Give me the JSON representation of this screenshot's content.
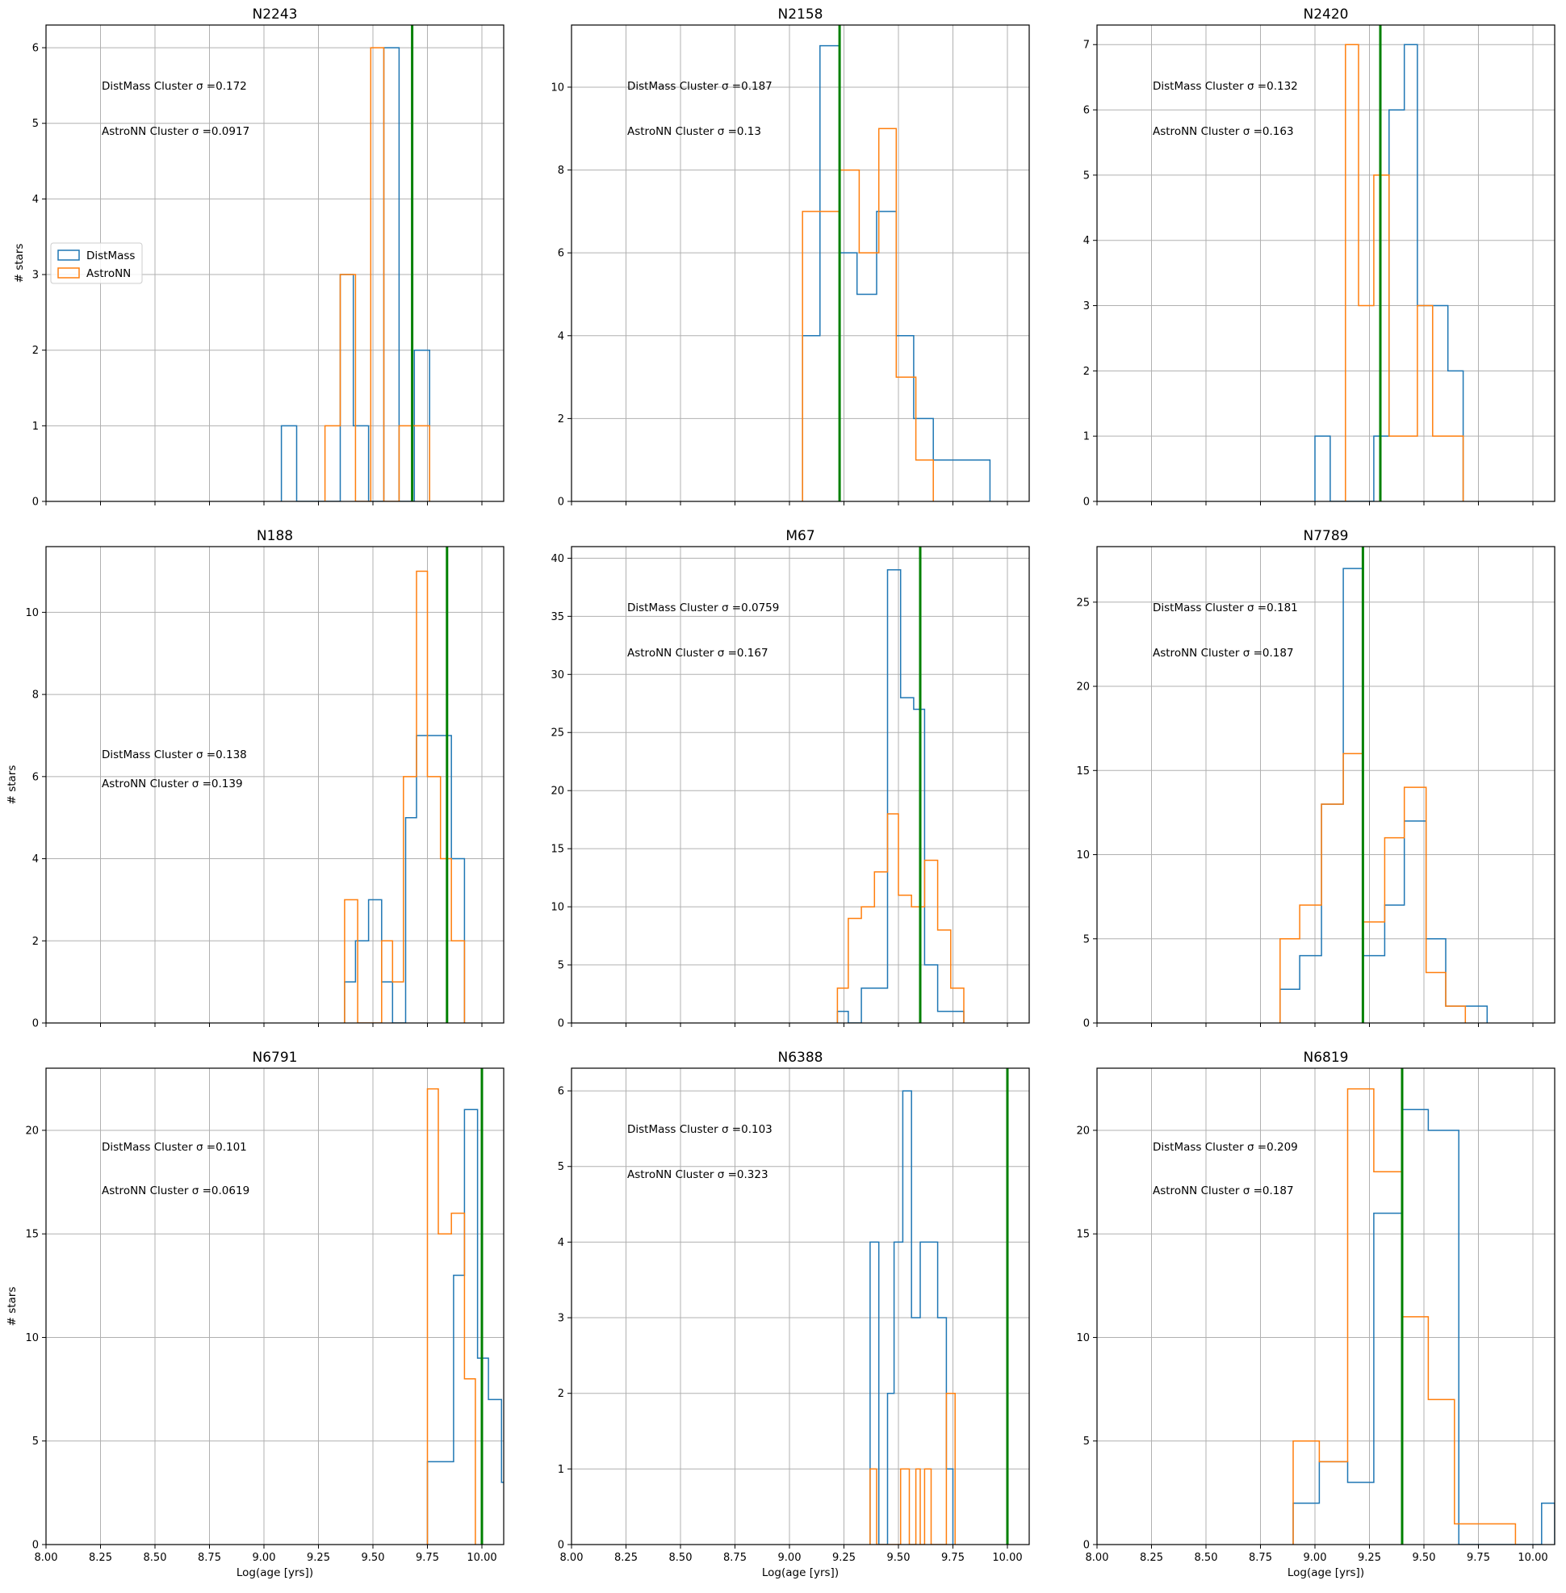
{
  "figure": {
    "shared_xlabel": "Log(age [yrs])",
    "shared_ylabel": "# stars",
    "x_ticks": [
      "8.00",
      "8.25",
      "8.50",
      "8.75",
      "9.00",
      "9.25",
      "9.50",
      "9.75",
      "10.00"
    ],
    "legend": [
      {
        "label": "DistMass",
        "color": "#1f77b4"
      },
      {
        "label": "AstroNN",
        "color": "#ff7f0e"
      }
    ],
    "colors": {
      "distmass": "#1f77b4",
      "astronn": "#ff7f0e",
      "reference_line": "#008000",
      "grid": "#b0b0b0"
    }
  },
  "chart_data": [
    {
      "type": "histogram",
      "title": "N2243",
      "xlim": [
        8.0,
        10.1
      ],
      "ylim": [
        0,
        6.3
      ],
      "yticks": [
        0,
        1,
        2,
        3,
        4,
        5,
        6
      ],
      "grid": true,
      "legend_placement": "center-left",
      "reference_line_x": 9.68,
      "annotations": [
        "DistMass Cluster σ =0.172",
        "AstroNN Cluster σ =0.0917"
      ],
      "series": [
        {
          "name": "DistMass",
          "steps": [
            [
              9.08,
              9.15,
              1
            ],
            [
              9.15,
              9.35,
              0
            ],
            [
              9.35,
              9.41,
              3
            ],
            [
              9.41,
              9.48,
              1
            ],
            [
              9.48,
              9.55,
              0
            ],
            [
              9.55,
              9.62,
              6
            ],
            [
              9.62,
              9.69,
              0
            ],
            [
              9.69,
              9.76,
              2
            ]
          ]
        },
        {
          "name": "AstroNN",
          "steps": [
            [
              9.28,
              9.35,
              1
            ],
            [
              9.35,
              9.42,
              3
            ],
            [
              9.42,
              9.49,
              0
            ],
            [
              9.49,
              9.55,
              6
            ],
            [
              9.55,
              9.62,
              0
            ],
            [
              9.62,
              9.69,
              1
            ],
            [
              9.69,
              9.76,
              1
            ]
          ]
        }
      ]
    },
    {
      "type": "histogram",
      "title": "N2158",
      "xlim": [
        8.0,
        10.1
      ],
      "ylim": [
        0,
        11.5
      ],
      "yticks": [
        0,
        2,
        4,
        6,
        8,
        10
      ],
      "grid": true,
      "reference_line_x": 9.23,
      "annotations": [
        "DistMass Cluster σ =0.187",
        "AstroNN Cluster σ =0.13"
      ],
      "series": [
        {
          "name": "DistMass",
          "steps": [
            [
              9.06,
              9.14,
              4
            ],
            [
              9.14,
              9.23,
              11
            ],
            [
              9.23,
              9.31,
              6
            ],
            [
              9.31,
              9.4,
              5
            ],
            [
              9.4,
              9.49,
              7
            ],
            [
              9.49,
              9.57,
              4
            ],
            [
              9.57,
              9.66,
              2
            ],
            [
              9.66,
              9.74,
              1
            ],
            [
              9.74,
              9.83,
              1
            ],
            [
              9.83,
              9.92,
              1
            ]
          ]
        },
        {
          "name": "AstroNN",
          "steps": [
            [
              9.06,
              9.23,
              7
            ],
            [
              9.23,
              9.32,
              8
            ],
            [
              9.32,
              9.41,
              6
            ],
            [
              9.41,
              9.49,
              9
            ],
            [
              9.49,
              9.58,
              3
            ],
            [
              9.58,
              9.66,
              1
            ]
          ]
        }
      ]
    },
    {
      "type": "histogram",
      "title": "N2420",
      "xlim": [
        8.0,
        10.1
      ],
      "ylim": [
        0,
        7.3
      ],
      "yticks": [
        0,
        1,
        2,
        3,
        4,
        5,
        6,
        7
      ],
      "grid": true,
      "reference_line_x": 9.3,
      "annotations": [
        "DistMass Cluster σ =0.132",
        "AstroNN Cluster σ =0.163"
      ],
      "series": [
        {
          "name": "DistMass",
          "steps": [
            [
              9.0,
              9.07,
              1
            ],
            [
              9.07,
              9.27,
              0
            ],
            [
              9.27,
              9.34,
              1
            ],
            [
              9.34,
              9.41,
              6
            ],
            [
              9.41,
              9.47,
              7
            ],
            [
              9.47,
              9.54,
              3
            ],
            [
              9.54,
              9.61,
              3
            ],
            [
              9.61,
              9.68,
              2
            ]
          ]
        },
        {
          "name": "AstroNN",
          "steps": [
            [
              9.14,
              9.2,
              7
            ],
            [
              9.2,
              9.27,
              3
            ],
            [
              9.27,
              9.34,
              5
            ],
            [
              9.34,
              9.41,
              1
            ],
            [
              9.41,
              9.47,
              1
            ],
            [
              9.47,
              9.54,
              3
            ],
            [
              9.54,
              9.61,
              1
            ],
            [
              9.61,
              9.68,
              1
            ]
          ]
        }
      ]
    },
    {
      "type": "histogram",
      "title": "N188",
      "xlim": [
        8.0,
        10.1
      ],
      "ylim": [
        0,
        11.6
      ],
      "yticks": [
        0,
        2,
        4,
        6,
        8,
        10
      ],
      "grid": true,
      "reference_line_x": 9.84,
      "annotations": [
        "DistMass Cluster σ =0.138",
        "AstroNN Cluster σ =0.139"
      ],
      "series": [
        {
          "name": "DistMass",
          "steps": [
            [
              9.37,
              9.42,
              1
            ],
            [
              9.42,
              9.48,
              2
            ],
            [
              9.48,
              9.54,
              3
            ],
            [
              9.54,
              9.59,
              1
            ],
            [
              9.59,
              9.65,
              0
            ],
            [
              9.65,
              9.7,
              5
            ],
            [
              9.7,
              9.86,
              7
            ],
            [
              9.86,
              9.92,
              4
            ]
          ]
        },
        {
          "name": "AstroNN",
          "steps": [
            [
              9.37,
              9.43,
              3
            ],
            [
              9.43,
              9.54,
              0
            ],
            [
              9.54,
              9.59,
              2
            ],
            [
              9.59,
              9.64,
              1
            ],
            [
              9.64,
              9.7,
              6
            ],
            [
              9.7,
              9.75,
              11
            ],
            [
              9.75,
              9.81,
              6
            ],
            [
              9.81,
              9.86,
              4
            ],
            [
              9.86,
              9.92,
              2
            ]
          ]
        }
      ]
    },
    {
      "type": "histogram",
      "title": "M67",
      "xlim": [
        8.0,
        10.1
      ],
      "ylim": [
        0,
        41
      ],
      "yticks": [
        0,
        5,
        10,
        15,
        20,
        25,
        30,
        35,
        40
      ],
      "grid": true,
      "reference_line_x": 9.6,
      "annotations": [
        "DistMass Cluster σ =0.0759",
        "AstroNN Cluster σ =0.167"
      ],
      "series": [
        {
          "name": "DistMass",
          "steps": [
            [
              9.22,
              9.27,
              1
            ],
            [
              9.27,
              9.33,
              0
            ],
            [
              9.33,
              9.45,
              3
            ],
            [
              9.45,
              9.51,
              39
            ],
            [
              9.51,
              9.57,
              28
            ],
            [
              9.57,
              9.62,
              27
            ],
            [
              9.62,
              9.68,
              5
            ],
            [
              9.68,
              9.74,
              1
            ],
            [
              9.74,
              9.8,
              1
            ]
          ]
        },
        {
          "name": "AstroNN",
          "steps": [
            [
              9.22,
              9.27,
              3
            ],
            [
              9.27,
              9.33,
              9
            ],
            [
              9.33,
              9.39,
              10
            ],
            [
              9.39,
              9.45,
              13
            ],
            [
              9.45,
              9.5,
              18
            ],
            [
              9.5,
              9.56,
              11
            ],
            [
              9.56,
              9.62,
              10
            ],
            [
              9.62,
              9.68,
              14
            ],
            [
              9.68,
              9.74,
              8
            ],
            [
              9.74,
              9.8,
              3
            ]
          ]
        }
      ]
    },
    {
      "type": "histogram",
      "title": "N7789",
      "xlim": [
        8.0,
        10.1
      ],
      "ylim": [
        0,
        28.3
      ],
      "yticks": [
        0,
        5,
        10,
        15,
        20,
        25
      ],
      "grid": true,
      "reference_line_x": 9.22,
      "annotations": [
        "DistMass Cluster σ =0.181",
        "AstroNN Cluster σ =0.187"
      ],
      "series": [
        {
          "name": "DistMass",
          "steps": [
            [
              8.84,
              8.93,
              2
            ],
            [
              8.93,
              9.03,
              4
            ],
            [
              9.03,
              9.13,
              13
            ],
            [
              9.13,
              9.22,
              27
            ],
            [
              9.22,
              9.32,
              4
            ],
            [
              9.32,
              9.41,
              7
            ],
            [
              9.41,
              9.51,
              12
            ],
            [
              9.51,
              9.6,
              5
            ],
            [
              9.6,
              9.7,
              1
            ],
            [
              9.7,
              9.79,
              1
            ]
          ]
        },
        {
          "name": "AstroNN",
          "steps": [
            [
              8.84,
              8.93,
              5
            ],
            [
              8.93,
              9.03,
              7
            ],
            [
              9.03,
              9.13,
              13
            ],
            [
              9.13,
              9.22,
              16
            ],
            [
              9.22,
              9.32,
              6
            ],
            [
              9.32,
              9.41,
              11
            ],
            [
              9.41,
              9.51,
              14
            ],
            [
              9.51,
              9.6,
              3
            ],
            [
              9.6,
              9.69,
              1
            ]
          ]
        }
      ]
    },
    {
      "type": "histogram",
      "title": "N6791",
      "xlim": [
        8.0,
        10.1
      ],
      "ylim": [
        0,
        23
      ],
      "yticks": [
        0,
        5,
        10,
        15,
        20
      ],
      "grid": true,
      "reference_line_x": 10.0,
      "annotations": [
        "DistMass Cluster σ =0.101",
        "AstroNN Cluster σ =0.0619"
      ],
      "series": [
        {
          "name": "DistMass",
          "steps": [
            [
              9.75,
              9.87,
              4
            ],
            [
              9.87,
              9.92,
              13
            ],
            [
              9.92,
              9.98,
              21
            ],
            [
              9.98,
              10.03,
              9
            ],
            [
              10.03,
              10.09,
              7
            ],
            [
              10.09,
              10.14,
              3
            ]
          ]
        },
        {
          "name": "AstroNN",
          "steps": [
            [
              9.75,
              9.8,
              22
            ],
            [
              9.8,
              9.86,
              15
            ],
            [
              9.86,
              9.92,
              16
            ],
            [
              9.92,
              9.97,
              8
            ]
          ]
        }
      ]
    },
    {
      "type": "histogram",
      "title": "N6388",
      "xlim": [
        8.0,
        10.1
      ],
      "ylim": [
        0,
        6.3
      ],
      "yticks": [
        0,
        1,
        2,
        3,
        4,
        5,
        6
      ],
      "grid": true,
      "reference_line_x": 10.0,
      "annotations": [
        "DistMass Cluster σ =0.103",
        "AstroNN Cluster σ =0.323"
      ],
      "series": [
        {
          "name": "DistMass",
          "steps": [
            [
              9.37,
              9.41,
              4
            ],
            [
              9.41,
              9.45,
              0
            ],
            [
              9.45,
              9.48,
              2
            ],
            [
              9.48,
              9.52,
              4
            ],
            [
              9.52,
              9.56,
              6
            ],
            [
              9.56,
              9.6,
              3
            ],
            [
              9.6,
              9.68,
              4
            ],
            [
              9.68,
              9.72,
              3
            ],
            [
              9.72,
              9.75,
              1
            ]
          ]
        },
        {
          "name": "AstroNN",
          "steps": [
            [
              9.37,
              9.4,
              1
            ],
            [
              9.4,
              9.51,
              0
            ],
            [
              9.51,
              9.55,
              1
            ],
            [
              9.55,
              9.58,
              0
            ],
            [
              9.58,
              9.6,
              1
            ],
            [
              9.6,
              9.62,
              0
            ],
            [
              9.62,
              9.65,
              1
            ],
            [
              9.65,
              9.72,
              0
            ],
            [
              9.72,
              9.76,
              2
            ]
          ]
        }
      ]
    },
    {
      "type": "histogram",
      "title": "N6819",
      "xlim": [
        8.0,
        10.1
      ],
      "ylim": [
        0,
        23
      ],
      "yticks": [
        0,
        5,
        10,
        15,
        20
      ],
      "grid": true,
      "reference_line_x": 9.4,
      "annotations": [
        "DistMass Cluster σ =0.209",
        "AstroNN Cluster σ =0.187"
      ],
      "series": [
        {
          "name": "DistMass",
          "steps": [
            [
              8.9,
              9.02,
              2
            ],
            [
              9.02,
              9.15,
              4
            ],
            [
              9.15,
              9.27,
              3
            ],
            [
              9.27,
              9.4,
              16
            ],
            [
              9.4,
              9.52,
              21
            ],
            [
              9.52,
              9.66,
              20
            ],
            [
              9.66,
              10.04,
              0
            ],
            [
              10.04,
              10.1,
              2
            ]
          ]
        },
        {
          "name": "AstroNN",
          "steps": [
            [
              8.9,
              9.02,
              5
            ],
            [
              9.02,
              9.15,
              4
            ],
            [
              9.15,
              9.27,
              22
            ],
            [
              9.27,
              9.4,
              18
            ],
            [
              9.4,
              9.52,
              11
            ],
            [
              9.52,
              9.64,
              7
            ],
            [
              9.64,
              9.79,
              1
            ],
            [
              9.79,
              9.92,
              1
            ]
          ]
        }
      ]
    }
  ]
}
